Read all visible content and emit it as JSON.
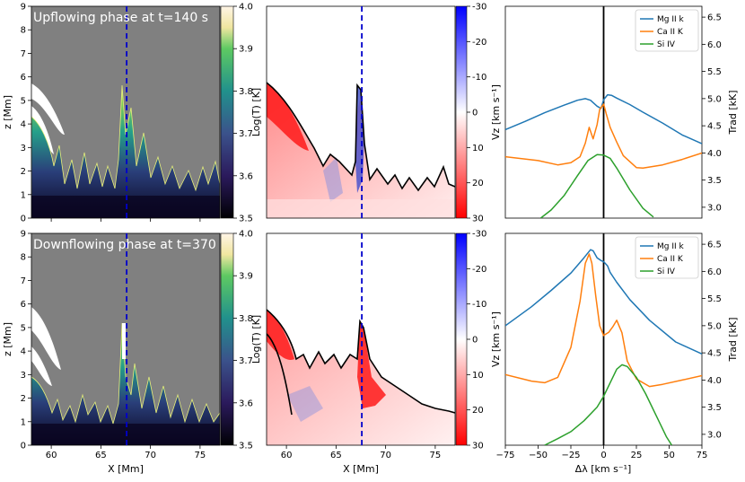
{
  "figure": {
    "rows": [
      {
        "title": "Upflowing phase at t=140 s"
      },
      {
        "title": "Downflowing phase at t=370 s"
      }
    ],
    "temperature_map": {
      "xlabel": "X [Mm]",
      "ylabel": "z [Mm]",
      "xlim": [
        58,
        77
      ],
      "ylim": [
        0,
        9
      ],
      "xticks": [
        "60",
        "65",
        "70",
        "75"
      ],
      "yticks": [
        "0",
        "1",
        "2",
        "3",
        "4",
        "5",
        "6",
        "7",
        "8",
        "9"
      ],
      "cbar_label": "Log(T) [K]",
      "cbar_range": [
        3.5,
        4.0
      ],
      "cbar_ticks": [
        "3.5",
        "3.6",
        "3.7",
        "3.8",
        "3.9",
        "4.0"
      ],
      "slit_x": 67.6
    },
    "velocity_map": {
      "xlabel": "X [Mm]",
      "xlim": [
        58,
        77
      ],
      "xticks": [
        "60",
        "65",
        "70",
        "75"
      ],
      "cbar_label": "Vz [km s⁻¹]",
      "cbar_range": [
        30,
        -30
      ],
      "cbar_ticks": [
        "-30",
        "-20",
        "-10",
        "0",
        "10",
        "20",
        "30"
      ],
      "slit_x": 67.6
    },
    "profiles": {
      "xlabel": "Δλ [km s⁻¹]",
      "ylabel": "Trad [kK]",
      "xlim": [
        -75,
        75
      ],
      "ylim": [
        2.8,
        6.7
      ],
      "xticks": [
        "−75",
        "−50",
        "−25",
        "0",
        "25",
        "50",
        "75"
      ],
      "yticks": [
        "3.0",
        "3.5",
        "4.0",
        "4.5",
        "5.0",
        "5.5",
        "6.0",
        "6.5"
      ],
      "legend_position": "top-right"
    },
    "colors": {
      "mg": "#1f77b4",
      "ca": "#ff7f0e",
      "si": "#2ca02c",
      "slit": "#0000cc",
      "gray": "#808080"
    }
  },
  "chart_data": [
    {
      "type": "line",
      "title": "Upflowing phase at t=140 s",
      "xlabel": "Δλ [km s⁻¹]",
      "ylabel": "Trad [kK]",
      "xlim": [
        -75,
        75
      ],
      "ylim": [
        2.8,
        6.7
      ],
      "series": [
        {
          "name": "Mg II k",
          "x": [
            -75,
            -60,
            -45,
            -30,
            -20,
            -14,
            -10,
            -5,
            -2,
            0,
            3,
            6,
            10,
            20,
            30,
            45,
            60,
            75
          ],
          "y": [
            4.43,
            4.58,
            4.74,
            4.88,
            4.97,
            5.0,
            4.97,
            4.86,
            4.82,
            4.98,
            5.07,
            5.06,
            5.01,
            4.89,
            4.75,
            4.55,
            4.33,
            4.17
          ]
        },
        {
          "name": "Ca II K",
          "x": [
            -75,
            -50,
            -35,
            -25,
            -18,
            -14,
            -11,
            -8,
            -5,
            -3,
            0,
            2,
            5,
            10,
            15,
            25,
            30,
            45,
            60,
            75
          ],
          "y": [
            3.93,
            3.86,
            3.78,
            3.82,
            3.93,
            4.18,
            4.47,
            4.26,
            4.52,
            4.8,
            4.9,
            4.72,
            4.47,
            4.2,
            3.95,
            3.73,
            3.72,
            3.78,
            3.88,
            4.0
          ]
        },
        {
          "name": "Si IV",
          "x": [
            -48,
            -40,
            -30,
            -20,
            -12,
            -5,
            0,
            5,
            10,
            20,
            30,
            38
          ],
          "y": [
            2.8,
            2.95,
            3.22,
            3.58,
            3.86,
            3.97,
            3.96,
            3.9,
            3.72,
            3.32,
            2.98,
            2.82
          ]
        }
      ]
    },
    {
      "type": "line",
      "title": "Downflowing phase at t=370 s",
      "xlabel": "Δλ [km s⁻¹]",
      "ylabel": "Trad [kK]",
      "xlim": [
        -75,
        75
      ],
      "ylim": [
        2.8,
        6.7
      ],
      "series": [
        {
          "name": "Mg II k",
          "x": [
            -75,
            -55,
            -40,
            -25,
            -15,
            -10,
            -8,
            -5,
            -2,
            0,
            3,
            5,
            10,
            20,
            35,
            55,
            75
          ],
          "y": [
            5.0,
            5.35,
            5.65,
            5.97,
            6.25,
            6.4,
            6.38,
            6.25,
            6.2,
            6.18,
            6.1,
            5.98,
            5.8,
            5.48,
            5.1,
            4.7,
            4.48
          ]
        },
        {
          "name": "Ca II K",
          "x": [
            -75,
            -55,
            -45,
            -35,
            -25,
            -18,
            -14,
            -11,
            -9,
            -6,
            -3,
            0,
            4,
            7,
            10,
            14,
            18,
            25,
            35,
            45,
            60,
            75
          ],
          "y": [
            4.1,
            3.98,
            3.95,
            4.05,
            4.6,
            5.45,
            6.15,
            6.32,
            6.15,
            5.55,
            5.0,
            4.82,
            4.88,
            4.98,
            5.1,
            4.87,
            4.35,
            4.02,
            3.88,
            3.92,
            4.0,
            4.08
          ]
        },
        {
          "name": "Si IV",
          "x": [
            -45,
            -35,
            -25,
            -15,
            -5,
            0,
            5,
            10,
            14,
            18,
            25,
            32,
            40,
            48,
            52
          ],
          "y": [
            2.8,
            2.92,
            3.05,
            3.25,
            3.5,
            3.7,
            3.95,
            4.2,
            4.28,
            4.25,
            4.05,
            3.75,
            3.35,
            2.95,
            2.8
          ]
        }
      ]
    }
  ]
}
